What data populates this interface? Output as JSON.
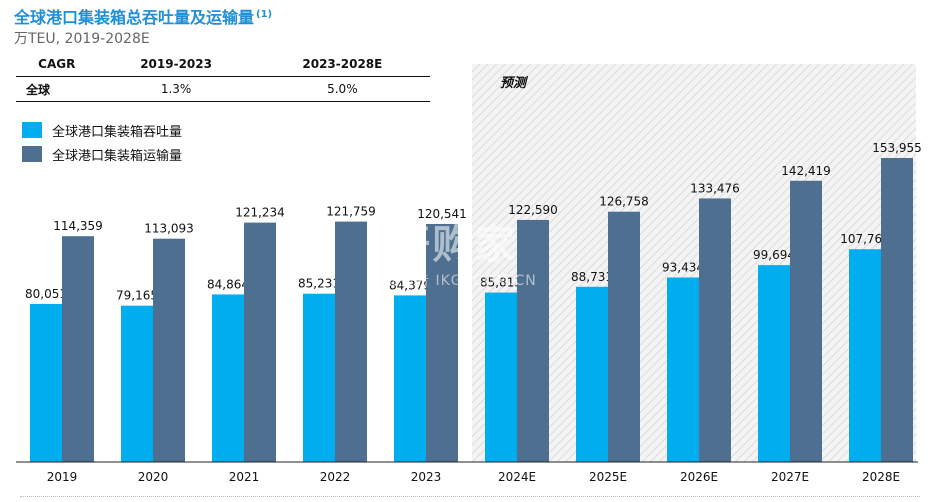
{
  "header": {
    "title": "全球港口集装箱总吞吐量及运输量",
    "title_note": "(1)",
    "subtitle": "万TEU, 2019-2028E"
  },
  "cagr_table": {
    "headers": [
      "CAGR",
      "2019-2023",
      "2023-2028E"
    ],
    "rows": [
      {
        "region": "全球",
        "c1": "1.3%",
        "c2": "5.0%"
      }
    ]
  },
  "forecast_label": "预测",
  "watermark": {
    "main": "开购家",
    "sub": "行业报告 IKGJ.COM.CN"
  },
  "chart_data": {
    "type": "bar",
    "categories": [
      "2019",
      "2020",
      "2021",
      "2022",
      "2023",
      "2024E",
      "2025E",
      "2026E",
      "2027E",
      "2028E"
    ],
    "series": [
      {
        "name": "全球港口集装箱吞吐量",
        "color": "#00adef",
        "values": [
          80051,
          79165,
          84864,
          85231,
          84379,
          85813,
          88731,
          93434,
          99694,
          107769
        ],
        "labels": [
          "80,051",
          "79,165",
          "84,864",
          "85,231",
          "84,379",
          "85,813",
          "88,731",
          "93,434",
          "99,694",
          "107,769"
        ]
      },
      {
        "name": "全球港口集装箱运输量",
        "color": "#4f6f91",
        "values": [
          114359,
          113093,
          121234,
          121759,
          120541,
          122590,
          126758,
          133476,
          142419,
          153955
        ],
        "labels": [
          "114,359",
          "113,093",
          "121,234",
          "121,759",
          "120,541",
          "122,590",
          "126,758",
          "133,476",
          "142,419",
          "153,955"
        ]
      }
    ],
    "forecast_start_index": 5,
    "legend_position": "top-left",
    "grid": false
  }
}
